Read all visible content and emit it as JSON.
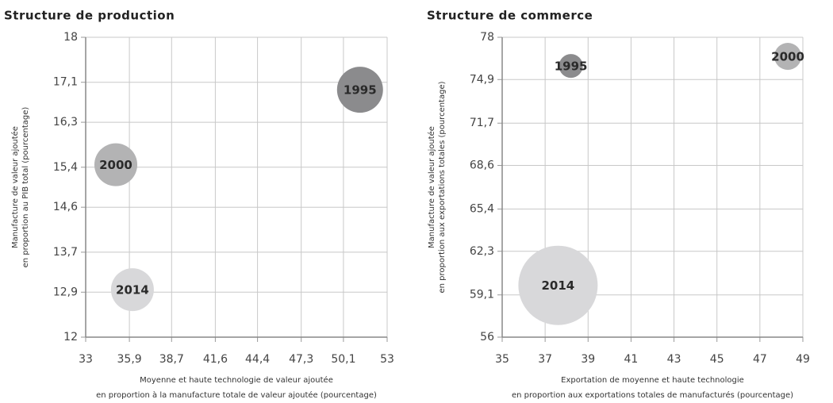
{
  "chart_data": [
    {
      "type": "scatter",
      "title": "Structure de production",
      "xlabel": [
        "Moyenne et haute technologie de valeur ajoutée",
        "en proportion à la manufacture totale de valeur ajoutée (pourcentage)"
      ],
      "ylabel": [
        "Manufacture de valeur ajoutée",
        "en proportion au PIB total (pourcentage)"
      ],
      "xlim": [
        33,
        53
      ],
      "xticks": [
        33,
        {
          "value": 35.9,
          "label": "35,9"
        },
        {
          "value": 38.7,
          "label": "38,7"
        },
        {
          "value": 41.6,
          "label": "41,6"
        },
        {
          "value": 44.4,
          "label": "44,4"
        },
        {
          "value": 47.3,
          "label": "47,3"
        },
        {
          "value": 50.1,
          "label": "50,1"
        },
        53
      ],
      "ylim": [
        12,
        18
      ],
      "yticks": [
        12,
        {
          "value": 12.9,
          "label": "12,9"
        },
        {
          "value": 13.7,
          "label": "13,7"
        },
        {
          "value": 14.6,
          "label": "14,6"
        },
        {
          "value": 15.4,
          "label": "15,4"
        },
        {
          "value": 16.3,
          "label": "16,3"
        },
        {
          "value": 17.1,
          "label": "17,1"
        },
        18
      ],
      "grid": true,
      "series": [
        {
          "name": "1995",
          "color": "#8b8b8d",
          "x": [
            51.2
          ],
          "values": [
            16.95
          ],
          "sizes": [
            840
          ]
        },
        {
          "name": "2000",
          "color": "#b3b3b4",
          "x": [
            35.0
          ],
          "values": [
            15.45
          ],
          "sizes": [
            730
          ]
        },
        {
          "name": "2014",
          "color": "#d8d8da",
          "x": [
            36.1
          ],
          "values": [
            12.95
          ],
          "sizes": [
            730
          ]
        }
      ]
    },
    {
      "type": "scatter",
      "title": "Structure de commerce",
      "xlabel": [
        "Exportation de moyenne et haute technologie",
        "en proportion aux exportations totales de manufacturés (pourcentage)"
      ],
      "ylabel": [
        "Manufacture de valeur ajoutée",
        "en proportion aux exportations totales (pourcentage)"
      ],
      "xlim": [
        35,
        49
      ],
      "xticks": [
        35,
        37,
        39,
        41,
        43,
        45,
        47,
        49
      ],
      "ylim": [
        56,
        78
      ],
      "yticks": [
        56,
        {
          "value": 59.1,
          "label": "59,1"
        },
        {
          "value": 62.3,
          "label": "62,3"
        },
        {
          "value": 65.4,
          "label": "65,4"
        },
        {
          "value": 68.6,
          "label": "68,6"
        },
        {
          "value": 71.7,
          "label": "71,7"
        },
        {
          "value": 74.9,
          "label": "74,9"
        },
        78
      ],
      "grid": true,
      "series": [
        {
          "name": "1995",
          "color": "#8b8b8d",
          "x": [
            38.2
          ],
          "values": [
            75.9
          ],
          "sizes": [
            225
          ]
        },
        {
          "name": "2000",
          "color": "#b3b3b4",
          "x": [
            48.3
          ],
          "values": [
            76.6
          ],
          "sizes": [
            290
          ]
        },
        {
          "name": "2014",
          "color": "#d8d8da",
          "x": [
            37.6
          ],
          "values": [
            59.8
          ],
          "sizes": [
            2500
          ]
        }
      ]
    }
  ]
}
